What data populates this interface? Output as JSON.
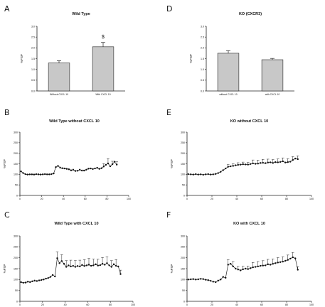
{
  "panels": [
    {
      "letter": "A"
    },
    {
      "letter": "B"
    },
    {
      "letter": "C"
    },
    {
      "letter": "D"
    },
    {
      "letter": "E"
    },
    {
      "letter": "F"
    }
  ],
  "chart_data": [
    {
      "panel": "A",
      "type": "bar",
      "title": "Wild Type",
      "ylabel": "%FSP",
      "categories": [
        "Without CXCL 10",
        "With CXCL 10"
      ],
      "values": [
        1.3,
        2.05
      ],
      "errors": [
        0.1,
        0.2
      ],
      "annotations": [
        {
          "category": "With CXCL 10",
          "text": "$"
        }
      ],
      "ylim": [
        0,
        3.0
      ],
      "yticks": [
        "0.0",
        "0.5",
        "1.0",
        "1.5",
        "2.0",
        "2.5",
        "3.0"
      ],
      "bar_color": "#c8c8c8"
    },
    {
      "panel": "D",
      "type": "bar",
      "title": "KO (CXCR3)",
      "ylabel": "%FSP",
      "categories": [
        "without CXCL 10",
        "with CXCL 10"
      ],
      "values": [
        1.75,
        1.45
      ],
      "errors": [
        0.12,
        0.06
      ],
      "ylim": [
        0,
        3.0
      ],
      "yticks": [
        "0.0",
        "0.5",
        "1.0",
        "1.5",
        "2.0",
        "2.5",
        "3.0"
      ],
      "bar_color": "#c8c8c8"
    },
    {
      "panel": "B",
      "type": "line",
      "title": "Wild Type without CXCL 10",
      "ylabel": "%FSP",
      "xlim": [
        0,
        100
      ],
      "ylim": [
        0,
        300
      ],
      "xticks": [
        "0",
        "20",
        "40",
        "60",
        "80",
        "100"
      ],
      "yticks": [
        "0",
        "50",
        "100",
        "150",
        "200",
        "250",
        "300"
      ],
      "series": [
        {
          "points": [
            [
              1,
              114
            ],
            [
              3,
              106
            ],
            [
              5,
              101
            ],
            [
              7,
              99
            ],
            [
              9,
              100
            ],
            [
              11,
              100
            ],
            [
              13,
              99
            ],
            [
              15,
              101
            ],
            [
              17,
              100
            ],
            [
              19,
              99
            ],
            [
              21,
              100
            ],
            [
              23,
              101
            ],
            [
              25,
              100
            ],
            [
              27,
              100
            ],
            [
              29,
              101
            ],
            [
              31,
              104
            ],
            [
              33,
              134
            ],
            [
              35,
              140
            ],
            [
              37,
              132
            ],
            [
              39,
              129
            ],
            [
              41,
              128
            ],
            [
              43,
              126
            ],
            [
              45,
              124
            ],
            [
              47,
              119
            ],
            [
              49,
              122
            ],
            [
              51,
              116
            ],
            [
              53,
              117
            ],
            [
              55,
              122
            ],
            [
              57,
              118
            ],
            [
              59,
              118
            ],
            [
              61,
              122
            ],
            [
              63,
              127
            ],
            [
              65,
              128
            ],
            [
              67,
              125
            ],
            [
              69,
              128
            ],
            [
              71,
              131
            ],
            [
              73,
              126
            ],
            [
              75,
              129
            ],
            [
              77,
              137
            ],
            [
              79,
              145
            ],
            [
              81,
              152
            ],
            [
              83,
              138
            ],
            [
              85,
              148
            ],
            [
              87,
              160
            ],
            [
              89,
              146
            ]
          ],
          "error": 14,
          "error_from": 76
        }
      ]
    },
    {
      "panel": "C",
      "type": "line",
      "title": "Wild Type with CXCL 10",
      "ylabel": "%FSP",
      "xlim": [
        0,
        100
      ],
      "ylim": [
        0,
        300
      ],
      "xticks": [
        "0",
        "20",
        "40",
        "60",
        "80",
        "100"
      ],
      "yticks": [
        "0",
        "50",
        "100",
        "150",
        "200",
        "250",
        "300"
      ],
      "series": [
        {
          "points": [
            [
              1,
              88
            ],
            [
              3,
              85
            ],
            [
              5,
              86
            ],
            [
              7,
              90
            ],
            [
              9,
              88
            ],
            [
              11,
              92
            ],
            [
              13,
              95
            ],
            [
              15,
              93
            ],
            [
              17,
              96
            ],
            [
              19,
              98
            ],
            [
              21,
              100
            ],
            [
              23,
              104
            ],
            [
              25,
              107
            ],
            [
              27,
              112
            ],
            [
              29,
              121
            ],
            [
              31,
              114
            ],
            [
              33,
              198
            ],
            [
              35,
              175
            ],
            [
              37,
              185
            ],
            [
              39,
              172
            ],
            [
              41,
              158
            ],
            [
              43,
              165
            ],
            [
              45,
              160
            ],
            [
              47,
              163
            ],
            [
              49,
              158
            ],
            [
              51,
              162
            ],
            [
              53,
              160
            ],
            [
              55,
              167
            ],
            [
              57,
              162
            ],
            [
              59,
              165
            ],
            [
              61,
              168
            ],
            [
              63,
              163
            ],
            [
              65,
              165
            ],
            [
              67,
              170
            ],
            [
              69,
              164
            ],
            [
              71,
              166
            ],
            [
              73,
              172
            ],
            [
              75,
              168
            ],
            [
              77,
              175
            ],
            [
              79,
              165
            ],
            [
              81,
              158
            ],
            [
              83,
              170
            ],
            [
              85,
              163
            ],
            [
              87,
              160
            ],
            [
              89,
              125
            ]
          ],
          "error": 18,
          "error_from": 30
        }
      ]
    },
    {
      "panel": "E",
      "type": "line",
      "title": "KO without CXCL 10",
      "ylabel": "%FSP",
      "xlim": [
        0,
        100
      ],
      "ylim": [
        0,
        300
      ],
      "xticks": [
        "0",
        "20",
        "40",
        "60",
        "80",
        "100"
      ],
      "yticks": [
        "0",
        "50",
        "100",
        "150",
        "200",
        "250",
        "300"
      ],
      "series": [
        {
          "points": [
            [
              1,
              101
            ],
            [
              3,
              100
            ],
            [
              5,
              99
            ],
            [
              7,
              101
            ],
            [
              9,
              99
            ],
            [
              11,
              100
            ],
            [
              13,
              98
            ],
            [
              15,
              100
            ],
            [
              17,
              101
            ],
            [
              19,
              99
            ],
            [
              21,
              100
            ],
            [
              23,
              102
            ],
            [
              25,
              106
            ],
            [
              27,
              112
            ],
            [
              29,
              120
            ],
            [
              31,
              128
            ],
            [
              33,
              136
            ],
            [
              35,
              138
            ],
            [
              37,
              140
            ],
            [
              39,
              143
            ],
            [
              41,
              145
            ],
            [
              43,
              146
            ],
            [
              45,
              148
            ],
            [
              47,
              147
            ],
            [
              49,
              146
            ],
            [
              51,
              149
            ],
            [
              53,
              152
            ],
            [
              55,
              150
            ],
            [
              57,
              151
            ],
            [
              59,
              154
            ],
            [
              61,
              155
            ],
            [
              63,
              153
            ],
            [
              65,
              156
            ],
            [
              67,
              157
            ],
            [
              69,
              154
            ],
            [
              71,
              158
            ],
            [
              73,
              157
            ],
            [
              75,
              159
            ],
            [
              77,
              162
            ],
            [
              79,
              156
            ],
            [
              81,
              158
            ],
            [
              83,
              160
            ],
            [
              85,
              168
            ],
            [
              87,
              175
            ],
            [
              89,
              172
            ]
          ],
          "error": 10,
          "error_from": 30
        }
      ]
    },
    {
      "panel": "F",
      "type": "line",
      "title": "KO with CXCL 10",
      "ylabel": "%FSP",
      "xlim": [
        0,
        100
      ],
      "ylim": [
        0,
        300
      ],
      "xticks": [
        "0",
        "20",
        "40",
        "60",
        "80",
        "100"
      ],
      "yticks": [
        "0",
        "50",
        "100",
        "150",
        "200",
        "250",
        "300"
      ],
      "series": [
        {
          "points": [
            [
              1,
              100
            ],
            [
              3,
              101
            ],
            [
              5,
              102
            ],
            [
              7,
              100
            ],
            [
              9,
              101
            ],
            [
              11,
              103
            ],
            [
              13,
              102
            ],
            [
              15,
              99
            ],
            [
              17,
              97
            ],
            [
              19,
              94
            ],
            [
              21,
              90
            ],
            [
              23,
              88
            ],
            [
              25,
              95
            ],
            [
              27,
              100
            ],
            [
              29,
              112
            ],
            [
              31,
              108
            ],
            [
              33,
              168
            ],
            [
              35,
              172
            ],
            [
              37,
              160
            ],
            [
              39,
              150
            ],
            [
              41,
              146
            ],
            [
              43,
              142
            ],
            [
              45,
              147
            ],
            [
              47,
              150
            ],
            [
              49,
              148
            ],
            [
              51,
              152
            ],
            [
              53,
              156
            ],
            [
              55,
              158
            ],
            [
              57,
              160
            ],
            [
              59,
              163
            ],
            [
              61,
              164
            ],
            [
              63,
              165
            ],
            [
              65,
              170
            ],
            [
              67,
              168
            ],
            [
              69,
              172
            ],
            [
              71,
              175
            ],
            [
              73,
              178
            ],
            [
              75,
              180
            ],
            [
              77,
              182
            ],
            [
              79,
              186
            ],
            [
              81,
              190
            ],
            [
              83,
              196
            ],
            [
              85,
              202
            ],
            [
              87,
              197
            ],
            [
              89,
              145
            ]
          ],
          "error": 14,
          "error_from": 30
        }
      ]
    }
  ]
}
